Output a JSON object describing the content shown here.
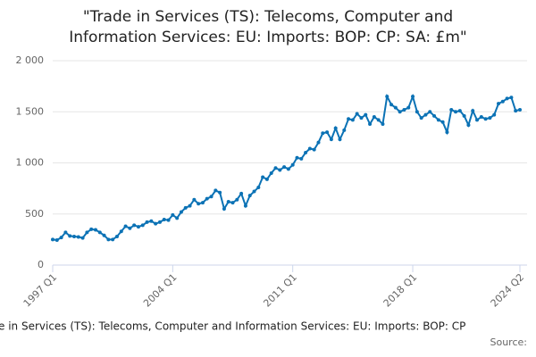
{
  "chart_data": {
    "type": "line",
    "title": [
      "\"Trade in Services (TS): Telecoms, Computer and",
      "Information Services: EU: Imports: BOP: CP: SA: £m\""
    ],
    "x_axis_title": "e in Services (TS): Telecoms, Computer and Information Services: EU: Imports: BOP: CP",
    "source": "Source:",
    "categories": [
      "1997 Q1",
      null,
      null,
      null,
      null,
      null,
      null,
      null,
      null,
      null,
      null,
      null,
      null,
      null,
      null,
      null,
      null,
      null,
      null,
      null,
      null,
      null,
      null,
      null,
      null,
      null,
      null,
      null,
      "2004 Q1",
      null,
      null,
      null,
      null,
      null,
      null,
      null,
      null,
      null,
      null,
      null,
      null,
      null,
      null,
      null,
      null,
      null,
      null,
      null,
      null,
      null,
      null,
      null,
      null,
      null,
      null,
      null,
      "2011 Q1",
      null,
      null,
      null,
      null,
      null,
      null,
      null,
      null,
      null,
      null,
      null,
      null,
      null,
      null,
      null,
      null,
      null,
      null,
      null,
      null,
      null,
      null,
      null,
      null,
      null,
      null,
      null,
      "2018 Q1",
      null,
      null,
      null,
      null,
      null,
      null,
      null,
      null,
      null,
      null,
      null,
      null,
      null,
      null,
      null,
      null,
      null,
      null,
      null,
      null,
      null,
      null,
      null,
      null,
      "2024 Q2"
    ],
    "series": [
      {
        "color": "#0b72b5",
        "values": [
          250,
          245,
          270,
          320,
          285,
          280,
          275,
          265,
          320,
          350,
          345,
          320,
          290,
          250,
          250,
          280,
          330,
          380,
          360,
          390,
          375,
          390,
          420,
          430,
          405,
          420,
          445,
          440,
          490,
          460,
          520,
          560,
          580,
          640,
          600,
          610,
          650,
          670,
          730,
          710,
          550,
          620,
          610,
          640,
          700,
          580,
          680,
          720,
          760,
          860,
          840,
          900,
          950,
          930,
          960,
          940,
          980,
          1050,
          1040,
          1100,
          1140,
          1130,
          1200,
          1290,
          1300,
          1230,
          1340,
          1230,
          1320,
          1430,
          1420,
          1480,
          1440,
          1470,
          1380,
          1450,
          1420,
          1380,
          1650,
          1570,
          1540,
          1500,
          1520,
          1540,
          1650,
          1500,
          1440,
          1470,
          1500,
          1460,
          1420,
          1400,
          1300,
          1520,
          1500,
          1510,
          1460,
          1370,
          1510,
          1420,
          1450,
          1430,
          1440,
          1470,
          1580,
          1600,
          1630,
          1640,
          1510,
          1520
        ]
      }
    ],
    "ylim": [
      0,
      2000
    ],
    "yticks": [
      0,
      500,
      {
        "value": 1000,
        "label": "1 000"
      },
      {
        "value": 1500,
        "label": "1 500"
      },
      {
        "value": 2000,
        "label": "2 000"
      }
    ],
    "grid": true
  }
}
